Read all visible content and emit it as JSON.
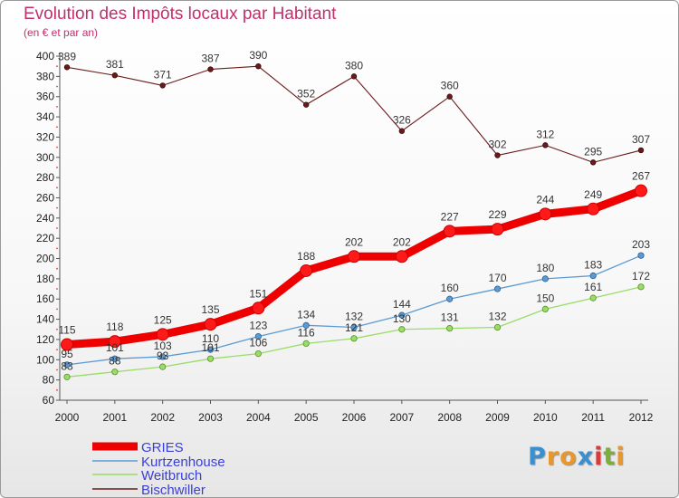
{
  "title": "Evolution des Impôts locaux par Habitant",
  "subtitle": "(en € et par an)",
  "logo": {
    "text": "Proxiti",
    "letters": [
      {
        "ch": "P",
        "color": "#3a8fd0"
      },
      {
        "ch": "r",
        "color": "#e8962e"
      },
      {
        "ch": "o",
        "color": "#e8962e"
      },
      {
        "ch": "x",
        "color": "#3a8fd0"
      },
      {
        "ch": "i",
        "color": "#d93a3a"
      },
      {
        "ch": "t",
        "color": "#7ab03a"
      },
      {
        "ch": "i",
        "color": "#e8962e"
      }
    ]
  },
  "chart_data": {
    "type": "line",
    "title": "Evolution des Impôts locaux par Habitant",
    "subtitle": "(en € et par an)",
    "xlabel": "",
    "ylabel": "",
    "x": [
      "2000",
      "2001",
      "2002",
      "2003",
      "2004",
      "2005",
      "2006",
      "2007",
      "2008",
      "2009",
      "2010",
      "2011",
      "2012"
    ],
    "ylim": [
      60,
      400
    ],
    "yticks": [
      60,
      80,
      100,
      120,
      140,
      160,
      180,
      200,
      220,
      240,
      260,
      280,
      300,
      320,
      340,
      360,
      380,
      400
    ],
    "grid": false,
    "legend_position": "bottom-left",
    "series": [
      {
        "name": "GRIES",
        "color": "#ee0000",
        "values": [
          115,
          118,
          125,
          135,
          151,
          188,
          202,
          202,
          227,
          229,
          244,
          249,
          267
        ]
      },
      {
        "name": "Kurtzenhouse",
        "color": "#5b9bd5",
        "values": [
          95,
          101,
          103,
          110,
          123,
          134,
          132,
          144,
          160,
          170,
          180,
          183,
          203
        ]
      },
      {
        "name": "Weitbruch",
        "color": "#99dd66",
        "values": [
          83,
          88,
          93,
          101,
          106,
          116,
          121,
          130,
          131,
          132,
          150,
          161,
          172
        ]
      },
      {
        "name": "Bischwiller",
        "color": "#6b1a1a",
        "values": [
          389,
          381,
          371,
          387,
          390,
          352,
          380,
          326,
          360,
          302,
          312,
          295,
          307
        ]
      }
    ]
  }
}
